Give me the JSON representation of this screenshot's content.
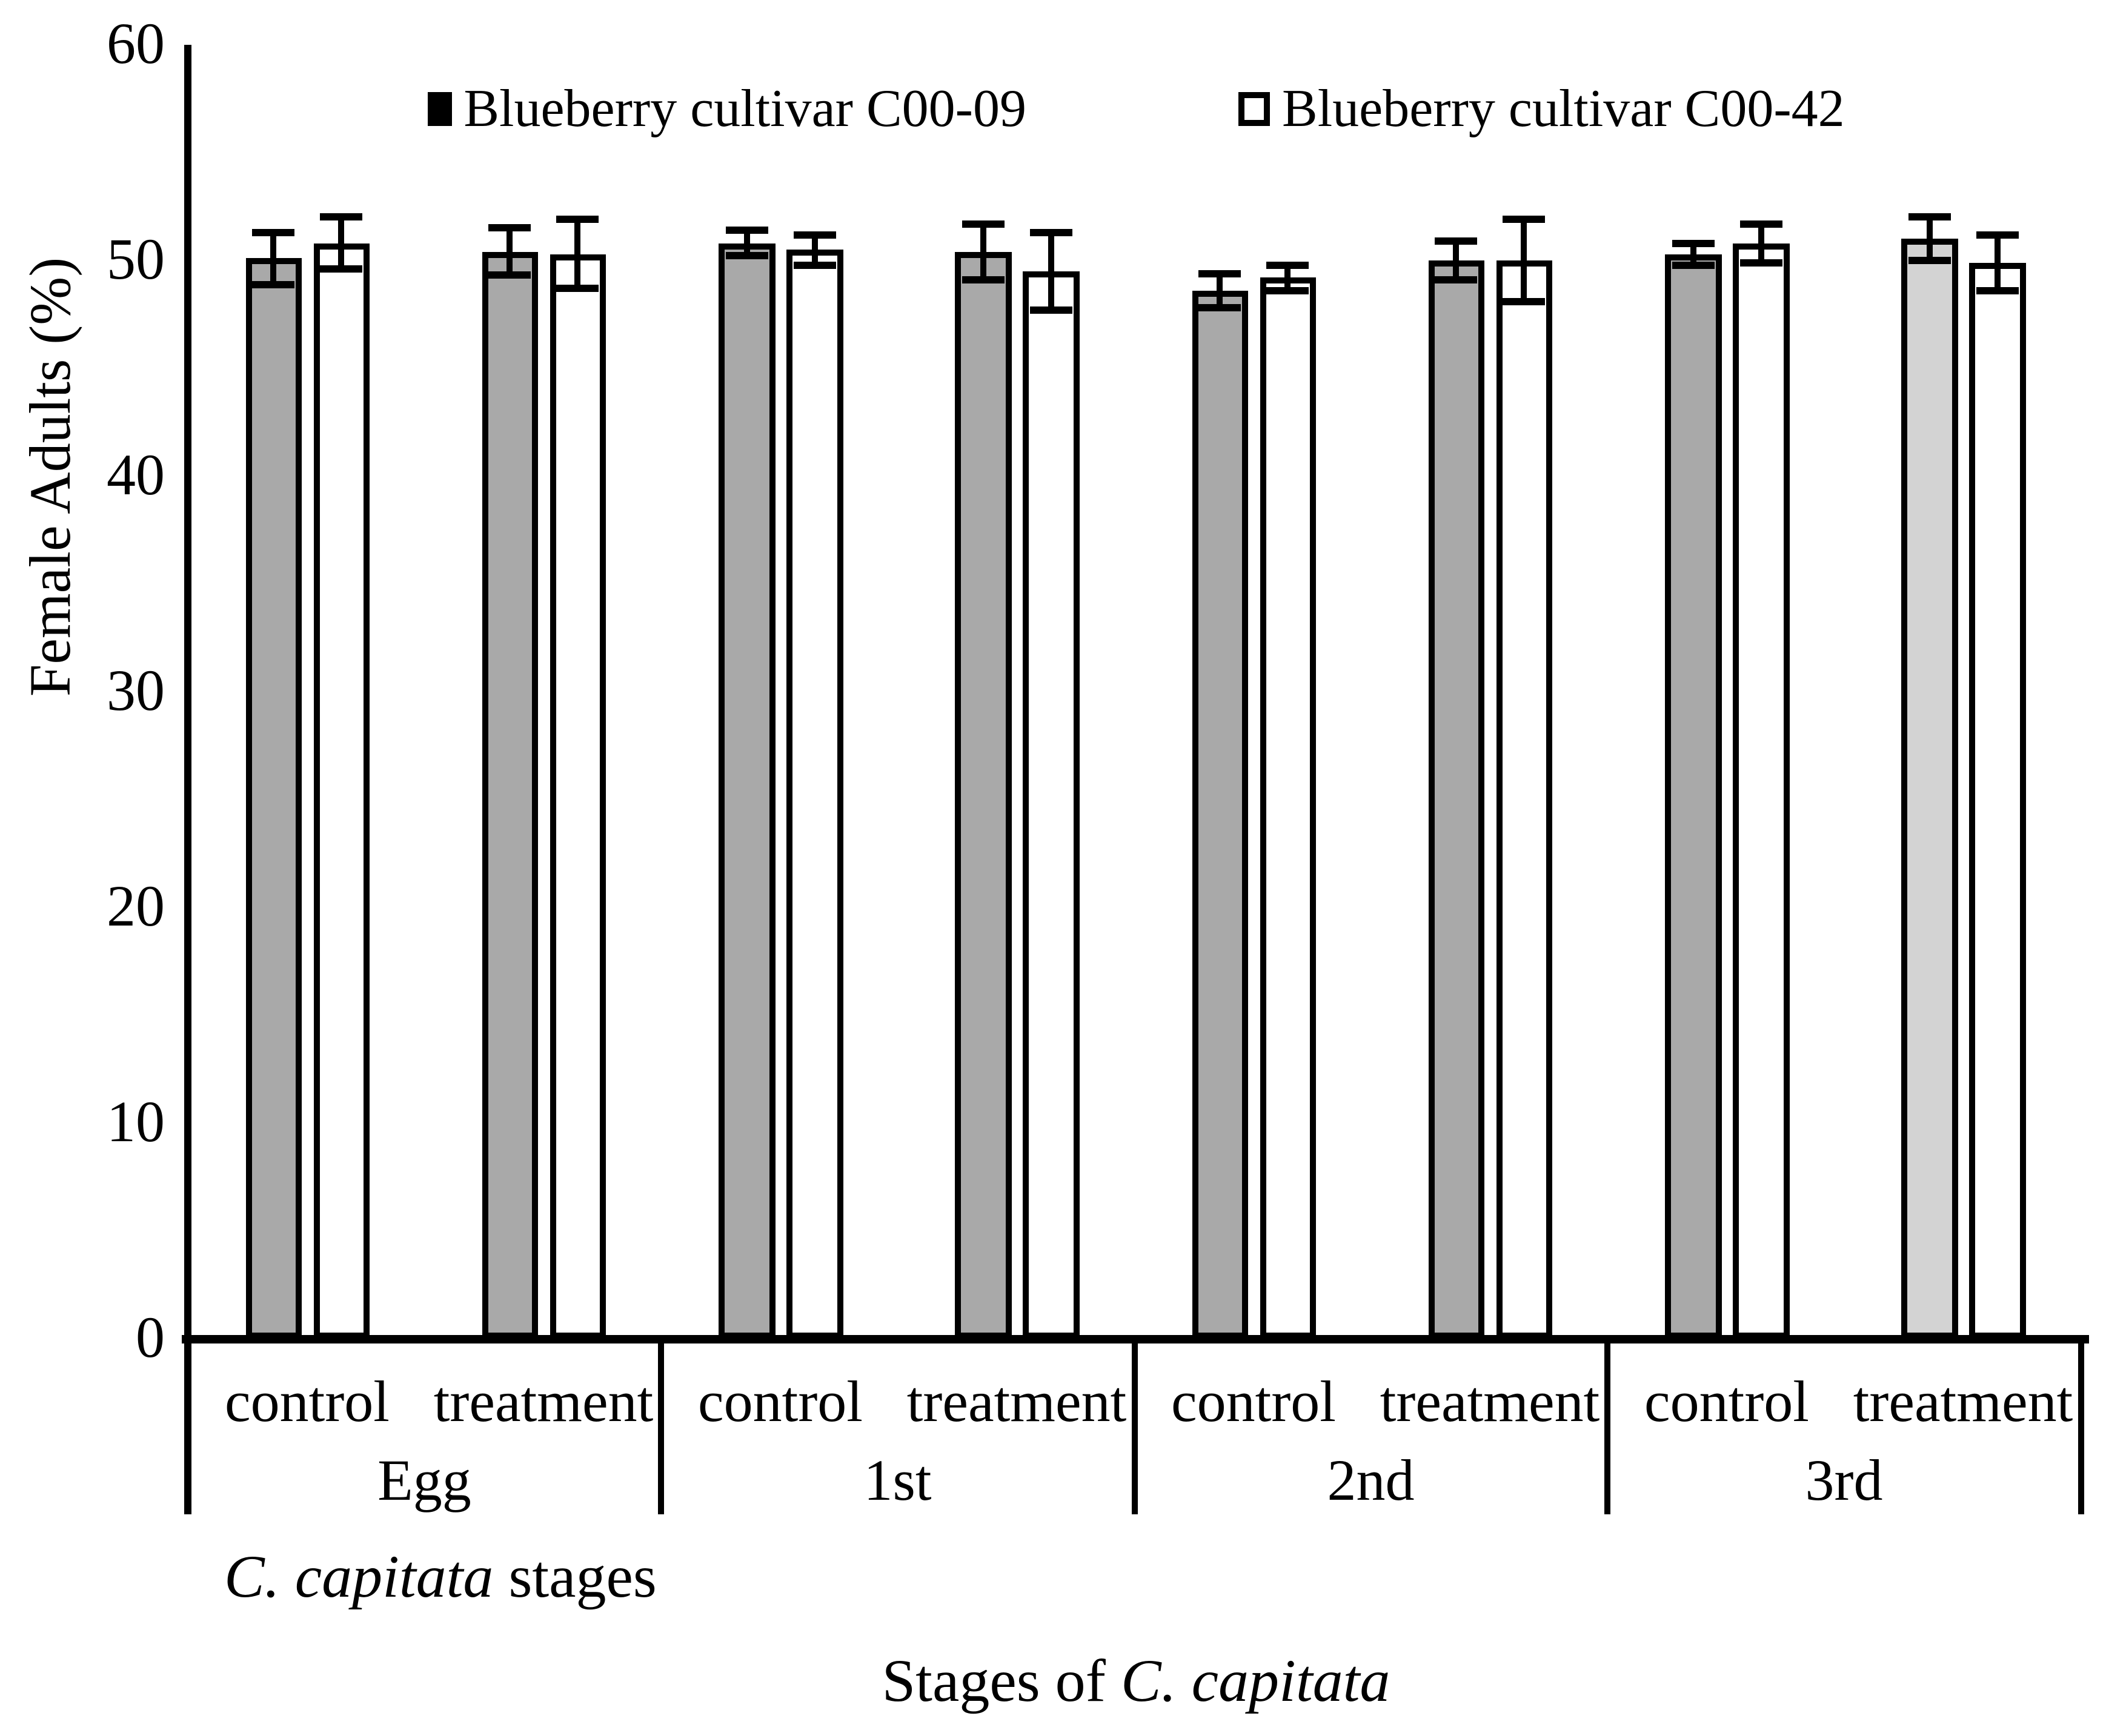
{
  "figure": {
    "background": "#FFFFFF",
    "legend": [
      {
        "label": "Blueberry cultivar C00-09",
        "marker_fill": "#000000",
        "marker_border": "#000000"
      },
      {
        "label": "Blueberry cultivar C00-42",
        "marker_fill": "#FFFFFF",
        "marker_border": "#000000"
      }
    ],
    "captions": {
      "axis_note_italic": "C. capitata",
      "axis_note_regular": " stages",
      "xlabel_regular": "Stages of ",
      "xlabel_italic": "C. capitata"
    }
  },
  "chart_data": {
    "type": "bar",
    "title": "",
    "ylabel": "Female Adults (%)",
    "xlabel": "Stages of C. capitata",
    "ylim": [
      0,
      60
    ],
    "yticks": [
      0,
      10,
      20,
      30,
      40,
      50,
      60
    ],
    "grid": false,
    "legend_position": "top",
    "error_bars": true,
    "series": [
      {
        "name": "Blueberry cultivar C00-09",
        "fill": "#A9A9A9",
        "border": "#000000"
      },
      {
        "name": "Blueberry cultivar C00-42",
        "fill": "#FFFFFF",
        "border": "#000000"
      }
    ],
    "conditions": [
      "control",
      "treatment"
    ],
    "stages": [
      "Egg",
      "1st",
      "2nd",
      "3rd"
    ],
    "groups": [
      {
        "stage": "Egg",
        "entries": [
          {
            "condition": "control",
            "bars": [
              {
                "value": 50.1,
                "err": 1.2
              },
              {
                "value": 50.8,
                "err": 1.2
              }
            ]
          },
          {
            "condition": "treatment",
            "bars": [
              {
                "value": 50.4,
                "err": 1.1
              },
              {
                "value": 50.3,
                "err": 1.6
              }
            ]
          }
        ]
      },
      {
        "stage": "1st",
        "entries": [
          {
            "condition": "control",
            "bars": [
              {
                "value": 50.8,
                "err": 0.6
              },
              {
                "value": 50.5,
                "err": 0.7
              }
            ]
          },
          {
            "condition": "treatment",
            "bars": [
              {
                "value": 50.4,
                "err": 1.3
              },
              {
                "value": 49.5,
                "err": 1.8
              }
            ]
          }
        ]
      },
      {
        "stage": "2nd",
        "entries": [
          {
            "condition": "control",
            "bars": [
              {
                "value": 48.6,
                "err": 0.8
              },
              {
                "value": 49.2,
                "err": 0.6
              }
            ]
          },
          {
            "condition": "treatment",
            "bars": [
              {
                "value": 50.0,
                "err": 0.9
              },
              {
                "value": 50.0,
                "err": 1.9
              }
            ]
          }
        ]
      },
      {
        "stage": "3rd",
        "entries": [
          {
            "condition": "control",
            "bars": [
              {
                "value": 50.3,
                "err": 0.5
              },
              {
                "value": 50.8,
                "err": 0.9
              }
            ]
          },
          {
            "condition": "treatment",
            "bars": [
              {
                "value": 51.0,
                "err": 1.0,
                "fill": "#D3D3D3"
              },
              {
                "value": 49.9,
                "err": 1.3
              }
            ]
          }
        ]
      }
    ]
  }
}
